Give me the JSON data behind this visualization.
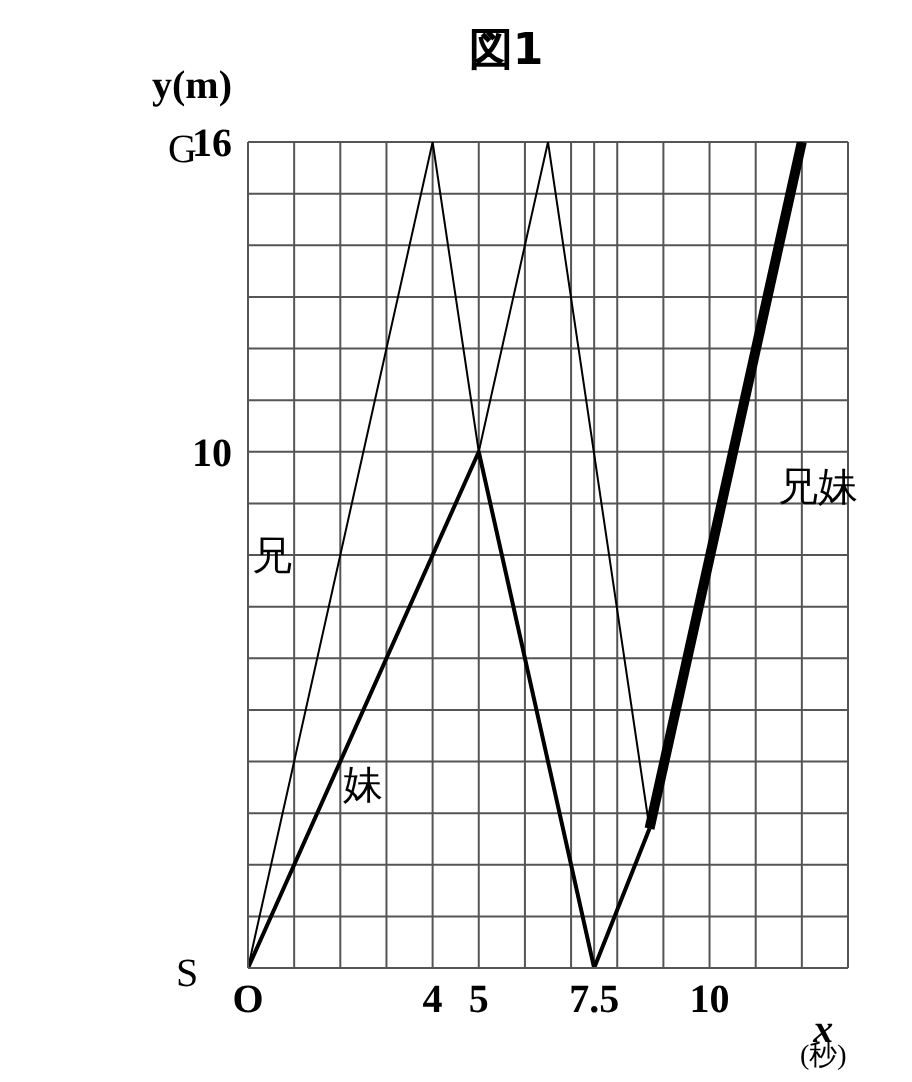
{
  "chart_data": {
    "type": "line",
    "title": "図1",
    "xlabel": "x (秒)",
    "ylabel": "y(m)",
    "xlim": [
      0,
      13
    ],
    "ylim": [
      0,
      16
    ],
    "xticks": [
      {
        "value": 0,
        "label": "O"
      },
      {
        "value": 1,
        "label": null
      },
      {
        "value": 2,
        "label": null
      },
      {
        "value": 3,
        "label": null
      },
      4,
      5,
      {
        "value": 6,
        "label": null
      },
      {
        "value": 7,
        "label": null
      },
      7.5,
      {
        "value": 8,
        "label": null
      },
      {
        "value": 9,
        "label": null
      },
      10,
      {
        "value": 11,
        "label": null
      },
      {
        "value": 12,
        "label": null
      },
      {
        "value": 13,
        "label": null
      }
    ],
    "annotations": [
      "S",
      "G"
    ],
    "yticks": [
      {
        "value": 0,
        "label": null
      },
      {
        "value": 1,
        "label": null
      },
      {
        "value": 2,
        "label": null
      },
      {
        "value": 3,
        "label": null
      },
      {
        "value": 4,
        "label": null
      },
      {
        "value": 5,
        "label": null
      },
      {
        "value": 6,
        "label": null
      },
      {
        "value": 7,
        "label": null
      },
      {
        "value": 8,
        "label": null
      },
      {
        "value": 9,
        "label": null
      },
      10,
      {
        "value": 11,
        "label": null
      },
      {
        "value": 12,
        "label": null
      },
      {
        "value": 13,
        "label": null
      },
      {
        "value": 14,
        "label": null
      },
      {
        "value": 15,
        "label": null
      },
      16
    ],
    "grid": true,
    "marker": "none",
    "line_style": "solid",
    "series": [
      {
        "name": "兄",
        "color": "#000000",
        "x": [
          0,
          4,
          5,
          6.5,
          8.7
        ],
        "values": [
          0,
          16,
          10,
          16,
          2.7
        ]
      },
      {
        "name": "妹",
        "color": "#000000",
        "x": [
          0,
          5,
          7.5,
          8.7
        ],
        "values": [
          0,
          10,
          0,
          2.7
        ]
      },
      {
        "name": "兄妹",
        "color": "#000000",
        "x": [
          8.7,
          12
        ],
        "values": [
          2.7,
          16
        ]
      }
    ]
  }
}
